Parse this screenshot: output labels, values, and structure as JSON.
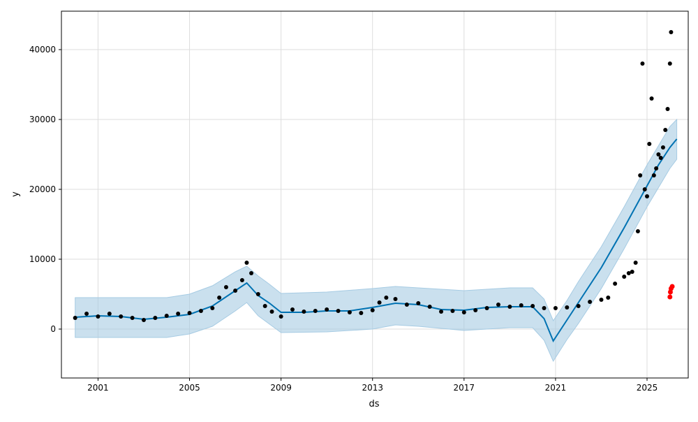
{
  "chart_data": {
    "type": "line",
    "xlabel": "ds",
    "ylabel": "y",
    "grid": true,
    "xlim": [
      1999.4,
      2026.8
    ],
    "ylim": [
      -7000,
      45500
    ],
    "x_ticks": [
      {
        "value": 2001,
        "label": "2001"
      },
      {
        "value": 2005,
        "label": "2005"
      },
      {
        "value": 2009,
        "label": "2009"
      },
      {
        "value": 2013,
        "label": "2013"
      },
      {
        "value": 2017,
        "label": "2017"
      },
      {
        "value": 2021,
        "label": "2021"
      },
      {
        "value": 2025,
        "label": "2025"
      }
    ],
    "y_ticks": [
      {
        "value": 0,
        "label": "0"
      },
      {
        "value": 10000,
        "label": "10000"
      },
      {
        "value": 20000,
        "label": "20000"
      },
      {
        "value": 30000,
        "label": "30000"
      },
      {
        "value": 40000,
        "label": "40000"
      }
    ],
    "colors": {
      "forecast_line": "#0072b2",
      "uncertainty_band": "#a6cbe3",
      "actual_points": "#000000",
      "highlight_points": "#ff0000"
    },
    "series": [
      {
        "kind": "forecast",
        "x": [
          2000.0,
          2001.0,
          2002.0,
          2003.0,
          2004.0,
          2005.0,
          2006.0,
          2007.0,
          2007.5,
          2008.0,
          2008.5,
          2009.0,
          2010.0,
          2011.0,
          2012.0,
          2013.0,
          2014.0,
          2015.0,
          2016.0,
          2017.0,
          2018.0,
          2019.0,
          2020.0,
          2020.5,
          2020.9,
          2021.5,
          2022.0,
          2023.0,
          2024.0,
          2025.0,
          2025.5,
          2026.0,
          2026.3
        ],
        "y": [
          1700,
          1900,
          1800,
          1400,
          1700,
          2100,
          3300,
          5500,
          6600,
          4800,
          3700,
          2400,
          2400,
          2600,
          2600,
          3100,
          3700,
          3500,
          2800,
          2700,
          3100,
          3200,
          3200,
          1500,
          -1700,
          1300,
          3800,
          8800,
          14500,
          20500,
          23500,
          26000,
          27200
        ]
      },
      {
        "kind": "uncertainty_band",
        "x": [
          2000.0,
          2002.0,
          2004.0,
          2005.0,
          2006.0,
          2007.0,
          2007.5,
          2008.0,
          2008.5,
          2009.0,
          2011.0,
          2013.0,
          2014.0,
          2015.0,
          2017.0,
          2019.0,
          2020.0,
          2020.5,
          2020.9,
          2021.5,
          2022.0,
          2023.0,
          2024.0,
          2025.0,
          2026.0,
          2026.3
        ],
        "lower": [
          -1200,
          -1200,
          -1200,
          -700,
          400,
          2600,
          3800,
          1900,
          700,
          -500,
          -400,
          0,
          600,
          400,
          -200,
          200,
          200,
          -1600,
          -4600,
          -1500,
          800,
          5800,
          11500,
          17500,
          23000,
          24300
        ],
        "upper": [
          4500,
          4500,
          4500,
          5000,
          6200,
          8200,
          9000,
          7600,
          6400,
          5100,
          5300,
          5800,
          6100,
          5900,
          5500,
          5900,
          5900,
          4300,
          1200,
          4100,
          6800,
          11800,
          17500,
          23500,
          29000,
          30000
        ]
      },
      {
        "kind": "observed",
        "x": [
          2000.0,
          2000.5,
          2001.0,
          2001.5,
          2002.0,
          2002.5,
          2003.0,
          2003.5,
          2004.0,
          2004.5,
          2005.0,
          2005.5,
          2006.0,
          2006.3,
          2006.6,
          2007.0,
          2007.3,
          2007.5,
          2007.7,
          2008.0,
          2008.3,
          2008.6,
          2009.0,
          2009.5,
          2010.0,
          2010.5,
          2011.0,
          2011.5,
          2012.0,
          2012.5,
          2013.0,
          2013.3,
          2013.6,
          2014.0,
          2014.5,
          2015.0,
          2015.5,
          2016.0,
          2016.5,
          2017.0,
          2017.5,
          2018.0,
          2018.5,
          2019.0,
          2019.5,
          2020.0,
          2020.5,
          2021.0,
          2021.5,
          2022.0,
          2022.5,
          2023.0,
          2023.3,
          2023.6,
          2024.0,
          2024.2,
          2024.35,
          2024.5,
          2024.6,
          2024.7,
          2024.8,
          2024.9,
          2025.0,
          2025.1,
          2025.2,
          2025.3,
          2025.4,
          2025.5,
          2025.6,
          2025.7,
          2025.8,
          2025.9,
          2026.0,
          2026.05
        ],
        "y": [
          1600,
          2200,
          1800,
          2200,
          1800,
          1600,
          1300,
          1600,
          1900,
          2200,
          2300,
          2600,
          3000,
          4500,
          6000,
          5500,
          7000,
          9500,
          8000,
          5000,
          3300,
          2500,
          1800,
          2800,
          2500,
          2600,
          2800,
          2600,
          2400,
          2300,
          2700,
          3800,
          4500,
          4300,
          3500,
          3700,
          3200,
          2500,
          2600,
          2400,
          2700,
          3000,
          3500,
          3200,
          3400,
          3300,
          3000,
          3000,
          3100,
          3300,
          3900,
          4200,
          4500,
          6500,
          7500,
          8000,
          8200,
          9500,
          14000,
          22000,
          38000,
          20000,
          19000,
          26500,
          33000,
          22000,
          23000,
          25000,
          24500,
          26000,
          28500,
          31500,
          38000,
          42500
        ]
      },
      {
        "kind": "highlight",
        "x": [
          2026.0,
          2026.02,
          2026.05,
          2026.1
        ],
        "y": [
          4600,
          5300,
          5800,
          6100
        ]
      }
    ]
  }
}
